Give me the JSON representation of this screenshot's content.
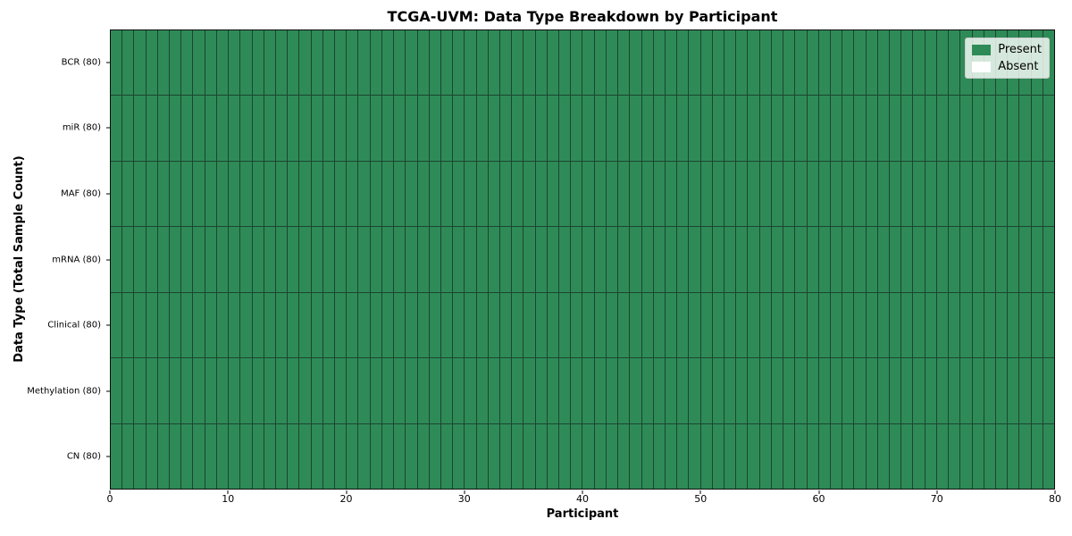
{
  "chart_data": {
    "type": "heatmap",
    "title": "TCGA-UVM: Data Type Breakdown by Participant",
    "xlabel": "Participant",
    "ylabel": "Data Type (Total Sample Count)",
    "x_range": [
      0,
      80
    ],
    "x_ticks": [
      0,
      10,
      20,
      30,
      40,
      50,
      60,
      70,
      80
    ],
    "n_participants": 80,
    "rows": [
      {
        "label": "BCR (80)",
        "data_type": "BCR",
        "total_samples": 80,
        "present": 80,
        "absent": 0
      },
      {
        "label": "miR (80)",
        "data_type": "miR",
        "total_samples": 80,
        "present": 80,
        "absent": 0
      },
      {
        "label": "MAF (80)",
        "data_type": "MAF",
        "total_samples": 80,
        "present": 80,
        "absent": 0
      },
      {
        "label": "mRNA (80)",
        "data_type": "mRNA",
        "total_samples": 80,
        "present": 80,
        "absent": 0
      },
      {
        "label": "Clinical (80)",
        "data_type": "Clinical",
        "total_samples": 80,
        "present": 80,
        "absent": 0
      },
      {
        "label": "Methylation (80)",
        "data_type": "Methylation",
        "total_samples": 80,
        "present": 80,
        "absent": 0
      },
      {
        "label": "CN (80)",
        "data_type": "CN",
        "total_samples": 80,
        "present": 80,
        "absent": 0
      }
    ],
    "legend": {
      "position": "upper right",
      "items": [
        {
          "label": "Present",
          "color": "#2e8b57"
        },
        {
          "label": "Absent",
          "color": "#ffffff"
        }
      ]
    },
    "colors": {
      "present": "#2e8b57",
      "absent": "#ffffff",
      "cell_border": "#1c4530",
      "spine": "#0d0d0d",
      "text": "#000000"
    },
    "layout": {
      "grid_cell_borders": true,
      "legend_alpha": 0.8
    }
  }
}
